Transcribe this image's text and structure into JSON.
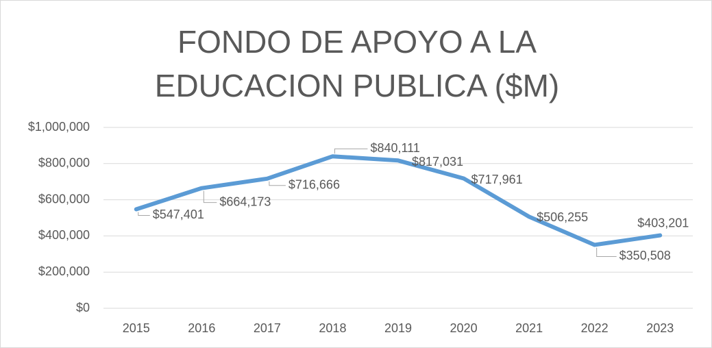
{
  "chart_data": {
    "type": "line",
    "title": "FONDO DE APOYO A LA EDUCACION PUBLICA ($M)",
    "categories": [
      "2015",
      "2016",
      "2017",
      "2018",
      "2019",
      "2020",
      "2021",
      "2022",
      "2023"
    ],
    "values": [
      547401,
      664173,
      716666,
      840111,
      817031,
      717961,
      506255,
      350508,
      403201
    ],
    "value_labels": [
      "$547,401",
      "$664,173",
      "$716,666",
      "$840,111",
      "$817,031",
      "$717,961",
      "$506,255",
      "$350,508",
      "$403,201"
    ],
    "color": "#5b9bd5",
    "ylim": [
      0,
      1000000
    ],
    "yticks": [
      {
        "value": 0,
        "label": "$0"
      },
      {
        "value": 200000,
        "label": "$200,000"
      },
      {
        "value": 400000,
        "label": "$400,000"
      },
      {
        "value": 600000,
        "label": "$600,000"
      },
      {
        "value": 800000,
        "label": "$800,000"
      },
      {
        "value": 1000000,
        "label": "$1,000,000"
      }
    ],
    "grid": true
  }
}
